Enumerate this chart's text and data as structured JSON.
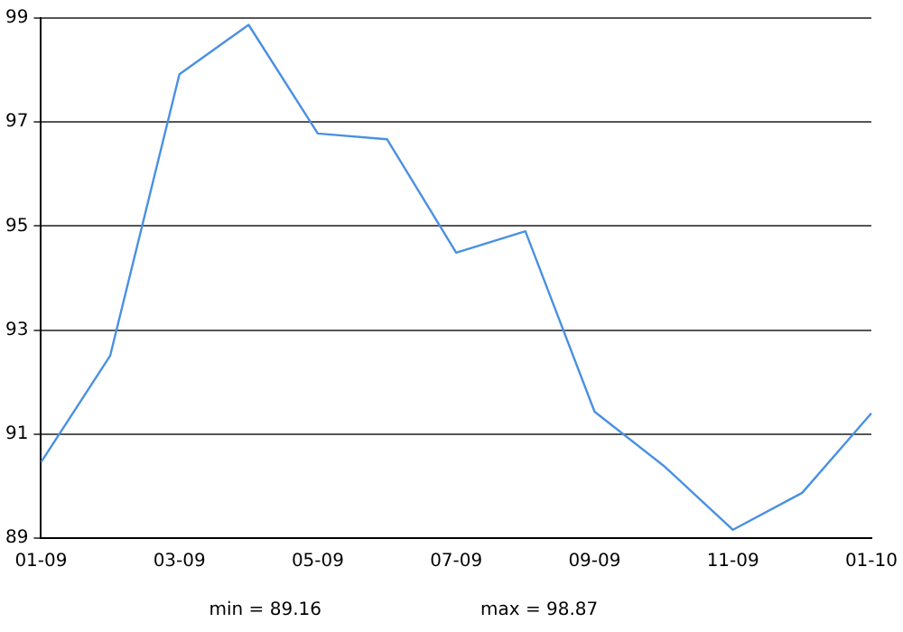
{
  "chart_data": {
    "type": "line",
    "categories": [
      "01-09",
      null,
      "03-09",
      null,
      "05-09",
      null,
      "07-09",
      null,
      "09-09",
      null,
      "11-09",
      null,
      "01-10"
    ],
    "series": [
      {
        "color": "#4a90e2",
        "values": [
          90.46,
          92.51,
          97.92,
          98.87,
          96.78,
          96.67,
          94.49,
          94.9,
          91.43,
          90.39,
          89.16,
          89.87,
          91.4
        ]
      }
    ],
    "ylim": [
      89,
      99
    ],
    "yticks": [
      89,
      91,
      93,
      95,
      97,
      99
    ],
    "grid": "y",
    "legend": false,
    "marker": "none",
    "line_style": "solid",
    "annotations": [
      "min = 89.16",
      "max = 98.87"
    ]
  }
}
